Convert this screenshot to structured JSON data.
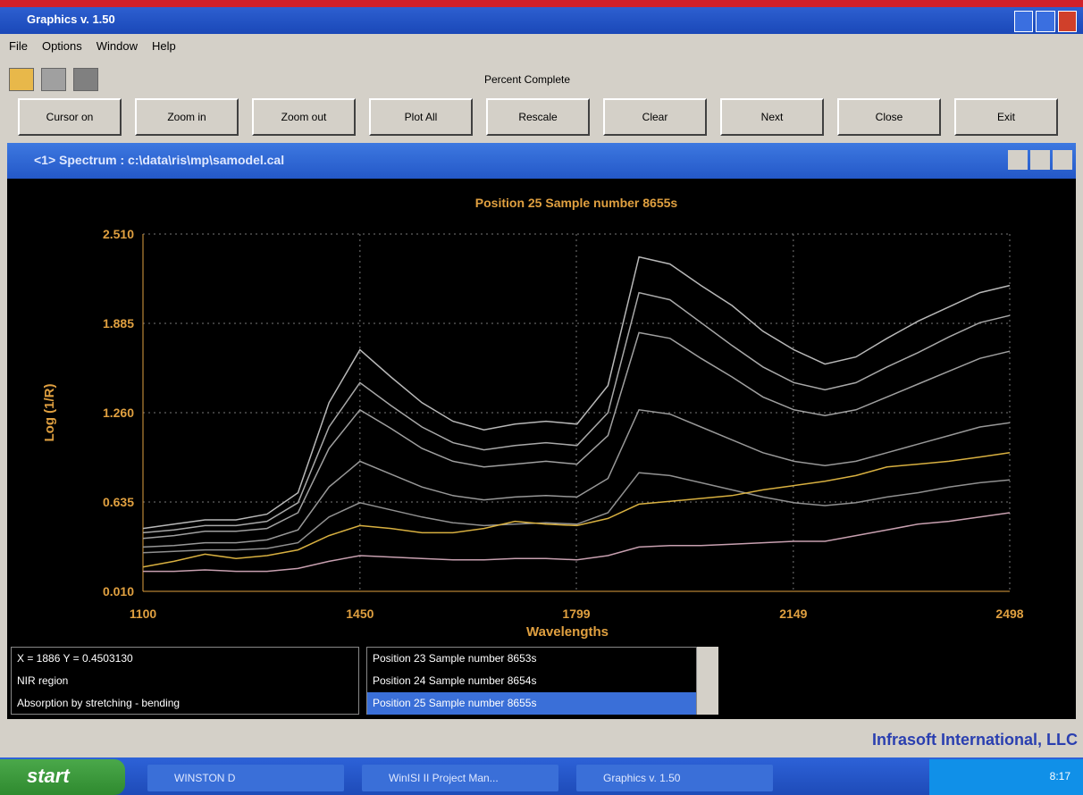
{
  "window": {
    "title": "Graphics v. 1.50",
    "menu": [
      "File",
      "Options",
      "Window",
      "Help"
    ]
  },
  "toolbar": {
    "progress_label": "Percent Complete",
    "buttons": [
      "Cursor on",
      "Zoom in",
      "Zoom out",
      "Plot All",
      "Rescale",
      "Clear",
      "Next",
      "Close",
      "Exit"
    ]
  },
  "spectrum_window": {
    "title": "<1> Spectrum : c:\\data\\ris\\mp\\samodel.cal"
  },
  "chart_data": {
    "type": "line",
    "title": "Position 25  Sample number 8655s",
    "x_label": "Wavelengths",
    "y_label": "Log (1/R)",
    "x": [
      1100,
      1150,
      1200,
      1250,
      1300,
      1350,
      1400,
      1450,
      1500,
      1550,
      1600,
      1650,
      1700,
      1750,
      1800,
      1850,
      1900,
      1950,
      2000,
      2050,
      2100,
      2150,
      2200,
      2250,
      2300,
      2350,
      2400,
      2450,
      2498
    ],
    "xlim": [
      1100,
      2498
    ],
    "xticks": [
      1100,
      1450,
      1799,
      2149,
      2498
    ],
    "ylim": [
      0.01,
      2.51
    ],
    "yticks": [
      {
        "value": 0.01,
        "label": "0.010"
      },
      0.635,
      {
        "value": 1.26,
        "label": "1.260"
      },
      1.885,
      {
        "value": 2.51,
        "label": "2.510"
      }
    ],
    "grid": true,
    "series": [
      {
        "color": "#b8b8b8",
        "values": [
          0.45,
          0.48,
          0.51,
          0.51,
          0.55,
          0.7,
          1.33,
          1.7,
          1.51,
          1.33,
          1.2,
          1.14,
          1.18,
          1.2,
          1.18,
          1.45,
          2.35,
          2.3,
          2.15,
          2.01,
          1.83,
          1.7,
          1.6,
          1.65,
          1.78,
          1.9,
          2.0,
          2.1,
          2.15
        ]
      },
      {
        "color": "#a8a8a8",
        "values": [
          0.42,
          0.44,
          0.47,
          0.47,
          0.5,
          0.63,
          1.16,
          1.47,
          1.31,
          1.16,
          1.05,
          1.0,
          1.03,
          1.05,
          1.03,
          1.26,
          2.1,
          2.05,
          1.89,
          1.73,
          1.58,
          1.47,
          1.42,
          1.47,
          1.58,
          1.68,
          1.79,
          1.89,
          1.94
        ]
      },
      {
        "color": "#a0a0a0",
        "values": [
          0.38,
          0.4,
          0.43,
          0.43,
          0.45,
          0.56,
          1.01,
          1.28,
          1.15,
          1.01,
          0.92,
          0.88,
          0.9,
          0.92,
          0.9,
          1.1,
          1.82,
          1.78,
          1.64,
          1.51,
          1.37,
          1.28,
          1.24,
          1.28,
          1.37,
          1.46,
          1.55,
          1.64,
          1.69
        ]
      },
      {
        "color": "#989898",
        "values": [
          0.32,
          0.33,
          0.35,
          0.35,
          0.37,
          0.44,
          0.74,
          0.92,
          0.83,
          0.74,
          0.68,
          0.65,
          0.67,
          0.68,
          0.67,
          0.8,
          1.28,
          1.25,
          1.16,
          1.07,
          0.98,
          0.92,
          0.89,
          0.92,
          0.98,
          1.04,
          1.1,
          1.16,
          1.19
        ]
      },
      {
        "color": "#909090",
        "values": [
          0.28,
          0.29,
          0.3,
          0.3,
          0.31,
          0.35,
          0.53,
          0.63,
          0.58,
          0.53,
          0.49,
          0.47,
          0.48,
          0.49,
          0.48,
          0.56,
          0.84,
          0.82,
          0.77,
          0.72,
          0.67,
          0.63,
          0.61,
          0.63,
          0.67,
          0.7,
          0.74,
          0.77,
          0.79
        ]
      },
      {
        "color": "#d8b040",
        "values": [
          0.18,
          0.22,
          0.27,
          0.24,
          0.26,
          0.3,
          0.4,
          0.47,
          0.45,
          0.42,
          0.42,
          0.45,
          0.5,
          0.48,
          0.47,
          0.52,
          0.62,
          0.64,
          0.66,
          0.68,
          0.72,
          0.75,
          0.78,
          0.82,
          0.88,
          0.9,
          0.92,
          0.95,
          0.98
        ]
      },
      {
        "color": "#c8a0b0",
        "values": [
          0.15,
          0.15,
          0.16,
          0.15,
          0.15,
          0.17,
          0.22,
          0.26,
          0.25,
          0.24,
          0.23,
          0.23,
          0.24,
          0.24,
          0.23,
          0.26,
          0.32,
          0.33,
          0.33,
          0.34,
          0.35,
          0.36,
          0.36,
          0.4,
          0.44,
          0.48,
          0.5,
          0.53,
          0.56
        ]
      }
    ]
  },
  "status": {
    "lines": [
      "X = 1886     Y = 0.4503130",
      "NIR region",
      "Absorption by stretching - bending"
    ]
  },
  "sample_list": [
    "Position 23  Sample number 8653s",
    "Position 24  Sample number 8654s",
    "Position 25  Sample number 8655s"
  ],
  "footer": "Infrasoft International, LLC",
  "taskbar": {
    "start": "start",
    "items": [
      "WINSTON D",
      "WinISI II Project Man...",
      "Graphics v. 1.50"
    ],
    "clock": "8:17"
  }
}
